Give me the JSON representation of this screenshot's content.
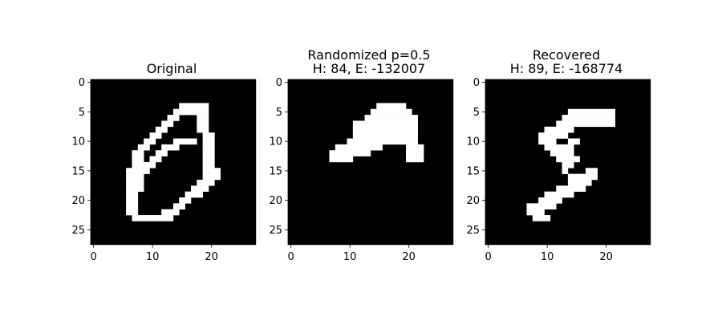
{
  "chart_data": [
    {
      "type": "heatmap",
      "title": "Original",
      "xticks": [
        "0",
        "10",
        "20"
      ],
      "yticks": [
        "0",
        "5",
        "10",
        "15",
        "20",
        "25"
      ],
      "grid": false,
      "colors": {
        "background": "#000000",
        "foreground": "#ffffff"
      },
      "white_runs": [
        [
          4,
          15,
          19
        ],
        [
          5,
          14,
          19
        ],
        [
          6,
          13,
          14
        ],
        [
          6,
          18,
          19
        ],
        [
          7,
          12,
          13
        ],
        [
          7,
          18,
          19
        ],
        [
          8,
          11,
          12
        ],
        [
          8,
          18,
          19
        ],
        [
          9,
          10,
          11
        ],
        [
          9,
          19,
          20
        ],
        [
          10,
          9,
          10
        ],
        [
          10,
          14,
          17
        ],
        [
          10,
          19,
          20
        ],
        [
          11,
          8,
          9
        ],
        [
          11,
          12,
          14
        ],
        [
          11,
          19,
          20
        ],
        [
          12,
          7,
          8
        ],
        [
          12,
          11,
          12
        ],
        [
          12,
          19,
          20
        ],
        [
          13,
          7,
          8
        ],
        [
          13,
          10,
          11
        ],
        [
          13,
          19,
          20
        ],
        [
          14,
          7,
          8
        ],
        [
          14,
          9,
          10
        ],
        [
          14,
          19,
          20
        ],
        [
          15,
          6,
          8
        ],
        [
          15,
          9,
          9
        ],
        [
          15,
          19,
          21
        ],
        [
          16,
          6,
          8
        ],
        [
          16,
          19,
          21
        ],
        [
          17,
          6,
          8
        ],
        [
          17,
          18,
          20
        ],
        [
          18,
          6,
          8
        ],
        [
          18,
          17,
          19
        ],
        [
          19,
          6,
          7
        ],
        [
          19,
          16,
          18
        ],
        [
          20,
          6,
          7
        ],
        [
          20,
          15,
          16
        ],
        [
          21,
          6,
          7
        ],
        [
          21,
          14,
          15
        ],
        [
          22,
          6,
          7
        ],
        [
          22,
          12,
          14
        ],
        [
          23,
          7,
          13
        ]
      ]
    },
    {
      "type": "heatmap",
      "title_lines": [
        "Randomized p=0.5",
        "H: 84, E: -132007"
      ],
      "xticks": [
        "0",
        "10",
        "20"
      ],
      "yticks": [
        "0",
        "5",
        "10",
        "15",
        "20",
        "25"
      ],
      "grid": false,
      "colors": {
        "background": "#000000",
        "foreground": "#ffffff"
      },
      "white_runs": [
        [
          4,
          15,
          19
        ],
        [
          5,
          14,
          20
        ],
        [
          6,
          13,
          21
        ],
        [
          7,
          11,
          21
        ],
        [
          8,
          11,
          21
        ],
        [
          9,
          11,
          21
        ],
        [
          10,
          10,
          19
        ],
        [
          10,
          20,
          21
        ],
        [
          11,
          8,
          15
        ],
        [
          11,
          20,
          22
        ],
        [
          12,
          7,
          13
        ],
        [
          12,
          20,
          22
        ],
        [
          13,
          7,
          10
        ],
        [
          13,
          20,
          22
        ]
      ]
    },
    {
      "type": "heatmap",
      "title_lines": [
        "Recovered",
        "H: 89, E: -168774"
      ],
      "xticks": [
        "0",
        "10",
        "20"
      ],
      "yticks": [
        "0",
        "5",
        "10",
        "15",
        "20",
        "25"
      ],
      "grid": false,
      "colors": {
        "background": "#000000",
        "foreground": "#ffffff"
      },
      "white_runs": [
        [
          5,
          14,
          21
        ],
        [
          6,
          13,
          21
        ],
        [
          7,
          12,
          21
        ],
        [
          8,
          10,
          14
        ],
        [
          9,
          9,
          13
        ],
        [
          10,
          9,
          11
        ],
        [
          10,
          14,
          15
        ],
        [
          11,
          10,
          14
        ],
        [
          12,
          11,
          14
        ],
        [
          13,
          12,
          15
        ],
        [
          14,
          13,
          14
        ],
        [
          15,
          13,
          13
        ],
        [
          15,
          17,
          18
        ],
        [
          16,
          14,
          18
        ],
        [
          17,
          14,
          17
        ],
        [
          18,
          12,
          14
        ],
        [
          18,
          15,
          16
        ],
        [
          19,
          10,
          14
        ],
        [
          20,
          9,
          12
        ],
        [
          21,
          7,
          11
        ],
        [
          22,
          7,
          9
        ],
        [
          23,
          8,
          10
        ]
      ]
    }
  ]
}
